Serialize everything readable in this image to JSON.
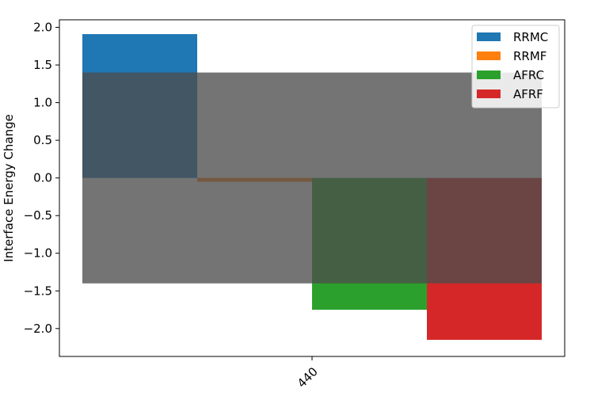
{
  "chart_data": {
    "type": "bar",
    "categories": [
      "440"
    ],
    "ylabel": "Interface Energy Change",
    "xlabel": "",
    "ylim": [
      -2.37,
      2.1
    ],
    "yticks": [
      -2.0,
      -1.5,
      -1.0,
      -0.5,
      0.0,
      0.5,
      1.0,
      1.5,
      2.0
    ],
    "ytick_labels": [
      "−2.0",
      "−1.5",
      "−1.0",
      "−0.5",
      "0.0",
      "0.5",
      "1.0",
      "1.5",
      "2.0"
    ],
    "series": [
      {
        "name": "RRMC",
        "values": [
          1.91
        ],
        "color": "#1f77b4"
      },
      {
        "name": "RRMF",
        "values": [
          -0.05
        ],
        "color": "#ff7f0e"
      },
      {
        "name": "AFRC",
        "values": [
          -1.75
        ],
        "color": "#2ca02c"
      },
      {
        "name": "AFRF",
        "values": [
          -2.15
        ],
        "color": "#d62728"
      }
    ],
    "threshold_band": {
      "y_low": -1.4,
      "y_high": 1.4,
      "color": "#4d4d4d",
      "opacity": 0.78
    },
    "legend_position": "top-right",
    "grid": false
  }
}
